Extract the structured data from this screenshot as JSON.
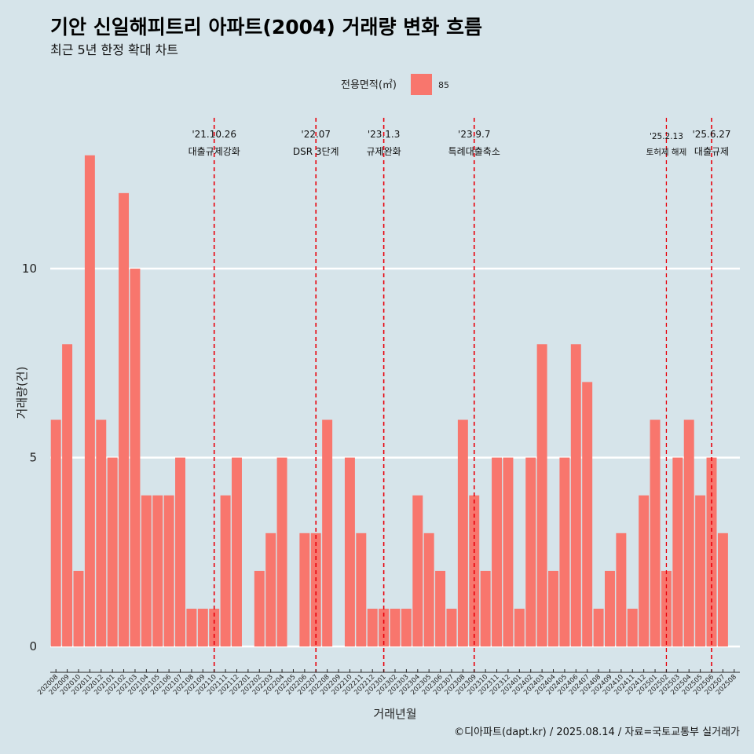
{
  "chart_data": {
    "type": "bar",
    "title": "기안 신일해피트리 아파트(2004) 거래량 변화 흐름",
    "subtitle": "최근 5년 한정 확대 차트",
    "xlabel": "거래년월",
    "ylabel": "거래량(건)",
    "ylim": [
      -0.6,
      14.2
    ],
    "yticks": [
      0,
      5,
      10
    ],
    "grid": true,
    "legend": {
      "title": "전용면적(㎡)",
      "placement": "top-center",
      "entries": [
        {
          "name": "85",
          "color": "#f8766d"
        }
      ]
    },
    "categories": [
      "202008",
      "202009",
      "202010",
      "202011",
      "202012",
      "202101",
      "202102",
      "202103",
      "202104",
      "202105",
      "202106",
      "202107",
      "202108",
      "202109",
      "202110",
      "202111",
      "202112",
      "202201",
      "202202",
      "202203",
      "202204",
      "202205",
      "202206",
      "202207",
      "202208",
      "202209",
      "202210",
      "202211",
      "202212",
      "202301",
      "202302",
      "202303",
      "202304",
      "202305",
      "202306",
      "202307",
      "202308",
      "202309",
      "202310",
      "202311",
      "202312",
      "202401",
      "202402",
      "202403",
      "202404",
      "202405",
      "202406",
      "202407",
      "202408",
      "202409",
      "202410",
      "202411",
      "202412",
      "202501",
      "202502",
      "202503",
      "202504",
      "202505",
      "202506",
      "202507",
      "202508"
    ],
    "series": [
      {
        "name": "85",
        "color": "#f8766d",
        "values": [
          6,
          8,
          2,
          13,
          6,
          5,
          12,
          10,
          4,
          4,
          4,
          5,
          1,
          1,
          1,
          4,
          5,
          0,
          2,
          3,
          5,
          0,
          3,
          3,
          6,
          0,
          5,
          3,
          1,
          1,
          1,
          1,
          4,
          3,
          2,
          1,
          6,
          4,
          2,
          5,
          5,
          1,
          5,
          8,
          2,
          5,
          8,
          7,
          1,
          2,
          3,
          1,
          4,
          6,
          2,
          5,
          6,
          4,
          5,
          3,
          0
        ]
      }
    ],
    "annotations": [
      {
        "category": "202110",
        "date": "'21.10.26",
        "label": "대출규제강화",
        "small": false
      },
      {
        "category": "202207",
        "date": "'22.07",
        "label": "DSR 3단계",
        "small": false
      },
      {
        "category": "202301",
        "date": "'23.1.3",
        "label": "규제완화",
        "small": false
      },
      {
        "category": "202309",
        "date": "'23.9.7",
        "label": "특례대출축소",
        "small": false
      },
      {
        "category": "202502",
        "date": "'25.2.13",
        "label": "토허제 해제",
        "small": true
      },
      {
        "category": "202506",
        "date": "'25.6.27",
        "label": "대출규제",
        "small": false
      }
    ],
    "caption": "©디아파트(dapt.kr) / 2025.08.14 / 자료=국토교통부 실거래가"
  }
}
